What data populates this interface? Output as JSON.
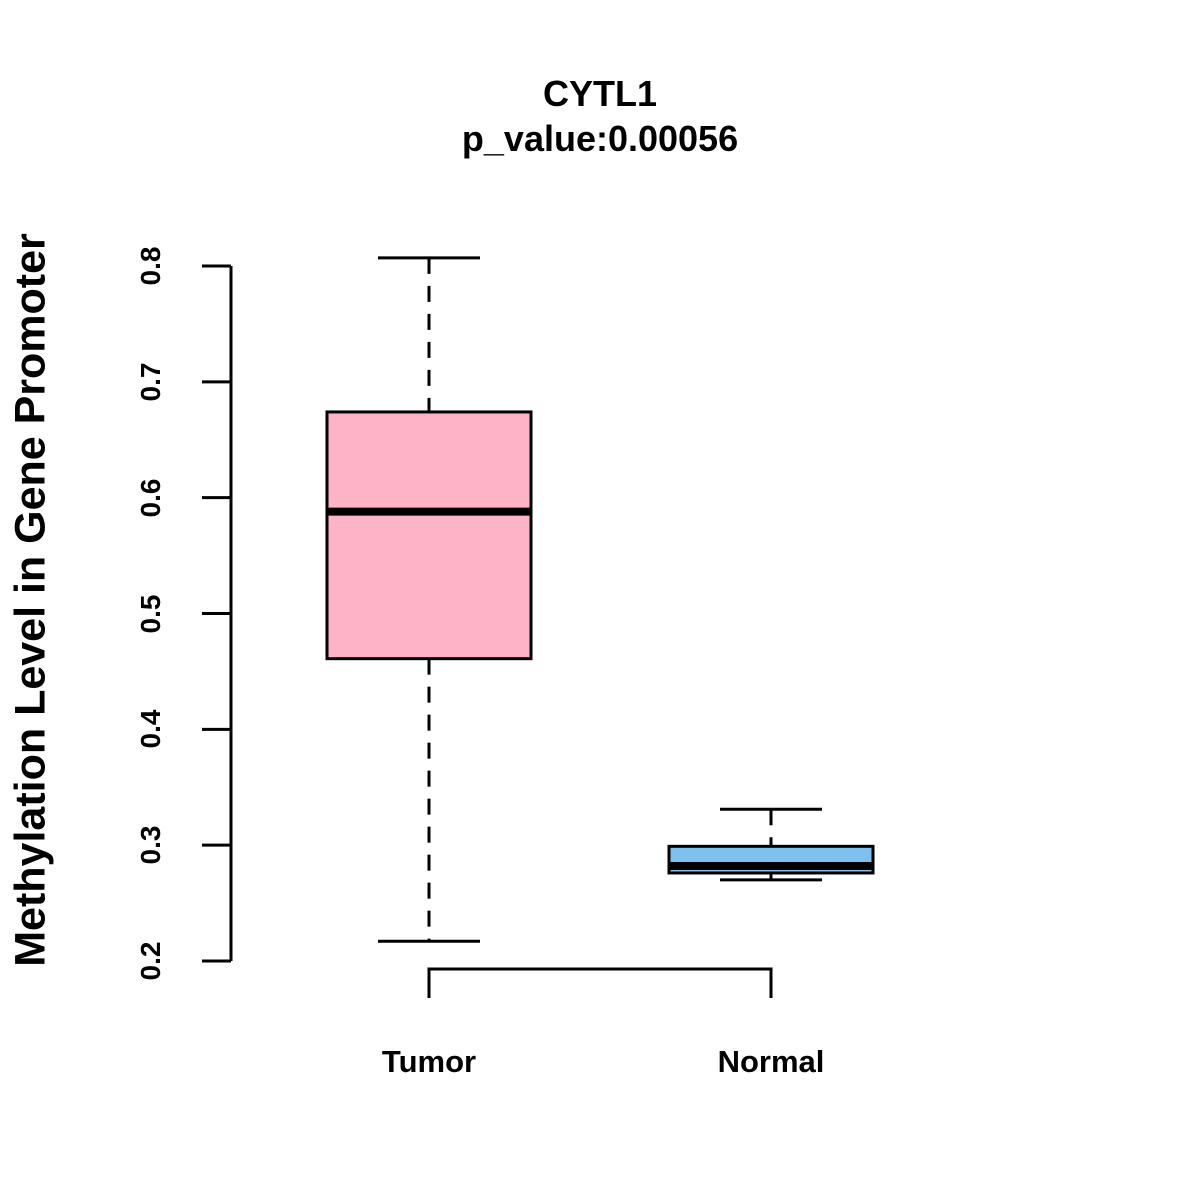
{
  "chart_data": {
    "type": "boxplot",
    "title": "CYTL1",
    "subtitle": "p_value:0.00056",
    "ylabel": "Methylation Level in Gene Promoter",
    "xlabel": "",
    "ylim": [
      0.2,
      0.8
    ],
    "yticks": [
      "0.2",
      "0.3",
      "0.4",
      "0.5",
      "0.6",
      "0.7",
      "0.8"
    ],
    "categories": [
      "Tumor",
      "Normal"
    ],
    "series": [
      {
        "name": "Tumor",
        "min": 0.217,
        "q1": 0.461,
        "median": 0.588,
        "q3": 0.674,
        "max": 0.807,
        "color": "#FFB3C6"
      },
      {
        "name": "Normal",
        "min": 0.27,
        "q1": 0.276,
        "median": 0.282,
        "q3": 0.299,
        "max": 0.331,
        "color": "#7EC0EE"
      }
    ],
    "significance_bracket": {
      "from": "Tumor",
      "to": "Normal"
    },
    "grid": false,
    "legend": "none"
  }
}
